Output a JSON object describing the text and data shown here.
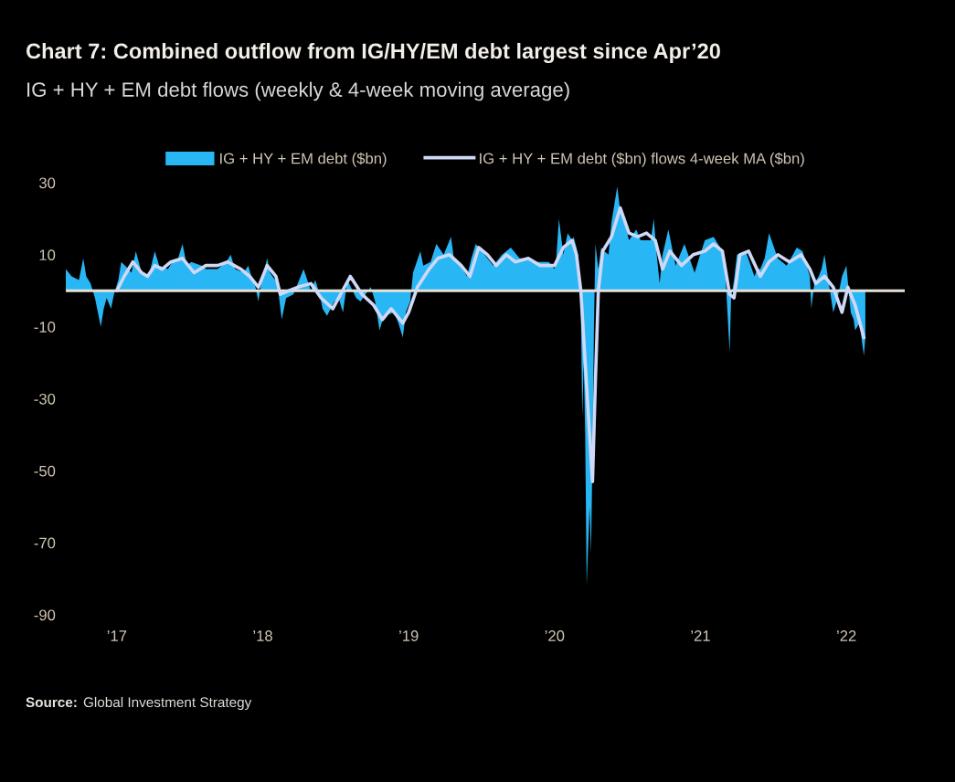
{
  "chart_data": {
    "type": "area",
    "title": "Chart 7: Combined outflow from IG/HY/EM debt largest since Apr’20",
    "subtitle": "IG + HY + EM debt flows (weekly & 4-week moving average)",
    "annotations": [
      "Source: Global Investment Strategy"
    ],
    "series": [
      {
        "name": "IG + HY + EM debt ($bn)",
        "color": "#29b6f4",
        "x": [
          2016.65,
          2016.69,
          2016.74,
          2016.77,
          2016.79,
          2016.82,
          2016.85,
          2016.87,
          2016.89,
          2016.91,
          2016.93,
          2016.96,
          2016.98,
          2017.01,
          2017.03,
          2017.08,
          2017.1,
          2017.13,
          2017.17,
          2017.21,
          2017.23,
          2017.26,
          2017.29,
          2017.35,
          2017.38,
          2017.42,
          2017.45,
          2017.48,
          2017.51,
          2017.58,
          2017.61,
          2017.69,
          2017.75,
          2017.78,
          2017.81,
          2017.87,
          2017.9,
          2017.93,
          2017.95,
          2017.97,
          2017.99,
          2018.03,
          2018.05,
          2018.1,
          2018.13,
          2018.16,
          2018.21,
          2018.24,
          2018.28,
          2018.33,
          2018.36,
          2018.39,
          2018.41,
          2018.44,
          2018.49,
          2018.52,
          2018.55,
          2018.58,
          2018.64,
          2018.67,
          2018.74,
          2018.77,
          2018.8,
          2018.83,
          2018.9,
          2018.93,
          2018.96,
          2018.98,
          2019.01,
          2019.03,
          2019.08,
          2019.1,
          2019.15,
          2019.19,
          2019.24,
          2019.29,
          2019.31,
          2019.34,
          2019.4,
          2019.43,
          2019.46,
          2019.52,
          2019.58,
          2019.64,
          2019.7,
          2019.76,
          2019.82,
          2019.88,
          2019.96,
          2020.0,
          2020.01,
          2020.03,
          2020.06,
          2020.09,
          2020.12,
          2020.13,
          2020.15,
          2020.16,
          2020.18,
          2020.19,
          2020.2,
          2020.21,
          2020.22,
          2020.24,
          2020.25,
          2020.26,
          2020.27,
          2020.28,
          2020.3,
          2020.32,
          2020.34,
          2020.37,
          2020.39,
          2020.43,
          2020.45,
          2020.47,
          2020.51,
          2020.56,
          2020.59,
          2020.61,
          2020.66,
          2020.68,
          2020.7,
          2020.72,
          2020.74,
          2020.78,
          2020.83,
          2020.86,
          2020.89,
          2020.96,
          2020.99,
          2021.03,
          2021.09,
          2021.15,
          2021.17,
          2021.2,
          2021.21,
          2021.23,
          2021.25,
          2021.31,
          2021.37,
          2021.39,
          2021.41,
          2021.44,
          2021.47,
          2021.53,
          2021.59,
          2021.62,
          2021.66,
          2021.7,
          2021.72,
          2021.75,
          2021.76,
          2021.78,
          2021.81,
          2021.83,
          2021.85,
          2021.88,
          2021.91,
          2021.94,
          2021.97,
          2022.0,
          2022.03,
          2022.05,
          2022.06,
          2022.09,
          2022.12,
          2022.13
        ],
        "values": [
          6,
          4,
          3,
          9,
          4,
          2,
          -2,
          -6,
          -10,
          -5,
          -2,
          -5,
          -1,
          3,
          8,
          6,
          5,
          11,
          5,
          4,
          6,
          11,
          7,
          6,
          8,
          9,
          13,
          7,
          8,
          7,
          6,
          6,
          8,
          10,
          6,
          5,
          7,
          3,
          1,
          -3,
          2,
          9,
          5,
          2,
          -8,
          -2,
          -1,
          2,
          6,
          0,
          3,
          -1,
          -5,
          -7,
          -3,
          -2,
          -6,
          3,
          -2,
          -3,
          1,
          -3,
          -11,
          -7,
          -6,
          -9,
          -13,
          -6,
          -3,
          5,
          11,
          7,
          8,
          13,
          10,
          15,
          9,
          8,
          4,
          9,
          13,
          10,
          7,
          10,
          12,
          9,
          9,
          8,
          8,
          6,
          8,
          20,
          10,
          16,
          14,
          15,
          12,
          10,
          -5,
          -35,
          -20,
          -40,
          -82,
          -60,
          -73,
          -45,
          -10,
          13,
          6,
          12,
          11,
          10,
          19,
          29,
          22,
          21,
          14,
          17,
          14,
          14,
          14,
          20,
          10,
          2,
          10,
          17,
          7,
          10,
          13,
          5,
          9,
          14,
          15,
          11,
          5,
          -17,
          -2,
          3,
          10,
          11,
          4,
          6,
          6,
          9,
          16,
          9,
          7,
          9,
          12,
          11,
          8,
          4,
          -5,
          2,
          4,
          6,
          10,
          2,
          -6,
          -2,
          4,
          7,
          -6,
          -8,
          -11,
          -9,
          -18,
          -13
        ]
      },
      {
        "name": "IG + HY + EM debt ($bn) flows 4-week MA ($bn)",
        "type": "line",
        "color": "#cfd8f6",
        "x": [
          2017.0,
          2017.05,
          2017.11,
          2017.17,
          2017.21,
          2017.26,
          2017.31,
          2017.37,
          2017.45,
          2017.53,
          2017.61,
          2017.69,
          2017.76,
          2017.85,
          2017.91,
          2017.97,
          2018.03,
          2018.09,
          2018.12,
          2018.18,
          2018.24,
          2018.33,
          2018.4,
          2018.48,
          2018.6,
          2018.68,
          2018.76,
          2018.82,
          2018.88,
          2018.96,
          2019.0,
          2019.06,
          2019.14,
          2019.2,
          2019.28,
          2019.36,
          2019.42,
          2019.48,
          2019.54,
          2019.6,
          2019.67,
          2019.73,
          2019.82,
          2019.9,
          2020.0,
          2020.06,
          2020.12,
          2020.15,
          2020.18,
          2020.21,
          2020.24,
          2020.26,
          2020.28,
          2020.3,
          2020.33,
          2020.39,
          2020.45,
          2020.51,
          2020.57,
          2020.63,
          2020.69,
          2020.74,
          2020.79,
          2020.87,
          2020.95,
          2021.03,
          2021.09,
          2021.15,
          2021.2,
          2021.23,
          2021.27,
          2021.33,
          2021.41,
          2021.47,
          2021.53,
          2021.61,
          2021.69,
          2021.75,
          2021.79,
          2021.85,
          2021.91,
          2021.97,
          2022.01,
          2022.06,
          2022.12
        ],
        "values": [
          0,
          4,
          8,
          5,
          4,
          7,
          6,
          8,
          9,
          5,
          7,
          7,
          8,
          6,
          4,
          1,
          7,
          4,
          -1,
          0,
          1,
          2,
          -2,
          -5,
          4,
          -1,
          -4,
          -8,
          -5,
          -9,
          -6,
          1,
          6,
          9,
          10,
          7,
          4,
          12,
          10,
          7,
          10,
          8,
          9,
          7,
          7,
          12,
          14,
          10,
          0,
          -20,
          -40,
          -53,
          -25,
          0,
          11,
          15,
          23,
          16,
          15,
          16,
          14,
          6,
          11,
          7,
          10,
          11,
          13,
          11,
          -1,
          -2,
          10,
          11,
          4,
          8,
          10,
          8,
          10,
          6,
          2,
          4,
          1,
          -6,
          1,
          -4,
          -13
        ]
      }
    ],
    "xlim": [
      2016.65,
      2022.4
    ],
    "xticks": [
      {
        "value": 2017,
        "label": "’17"
      },
      {
        "value": 2018,
        "label": "’18"
      },
      {
        "value": 2019,
        "label": "’19"
      },
      {
        "value": 2020,
        "label": "’20"
      },
      {
        "value": 2021,
        "label": "’21"
      },
      {
        "value": 2022,
        "label": "’22"
      }
    ],
    "ylim": [
      -90,
      30
    ],
    "yticks": [
      -90,
      -70,
      -50,
      -30,
      -10,
      10,
      30
    ],
    "ref_lines": [
      {
        "axis": "y",
        "value": 0,
        "color": "#e6e1d8"
      }
    ],
    "legend": "top"
  }
}
